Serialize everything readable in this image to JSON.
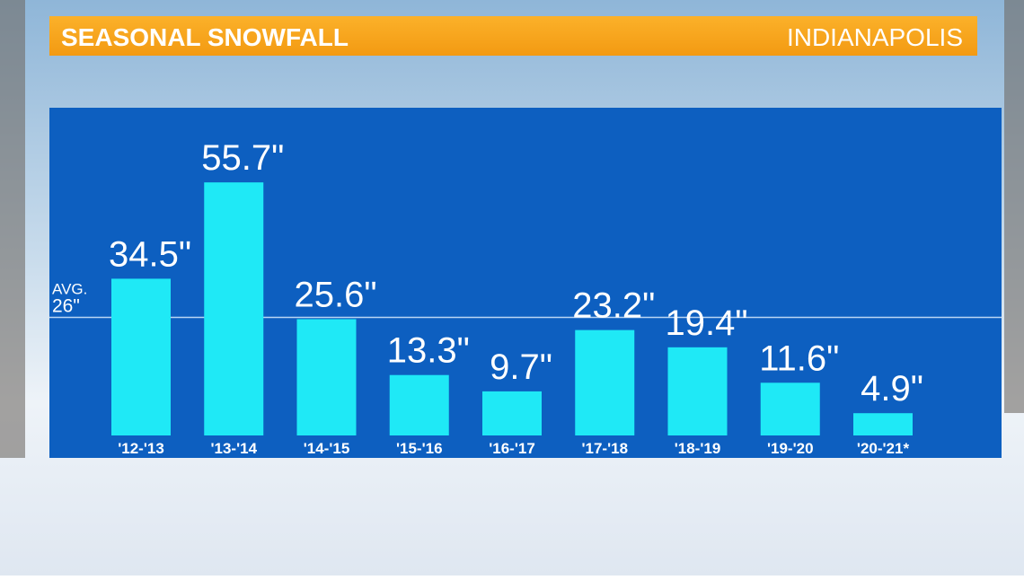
{
  "chart_data": {
    "type": "bar",
    "title": "SEASONAL SNOWFALL",
    "subtitle": "INDIANAPOLIS",
    "categories": [
      "'12-'13",
      "'13-'14",
      "'14-'15",
      "'15-'16",
      "'16-'17",
      "'17-'18",
      "'18-'19",
      "'19-'20",
      "'20-'21*"
    ],
    "values": [
      34.5,
      55.7,
      25.6,
      13.3,
      9.7,
      23.2,
      19.4,
      11.6,
      4.9
    ],
    "value_labels": [
      "34.5\"",
      "55.7\"",
      "25.6\"",
      "13.3\"",
      "9.7\"",
      "23.2\"",
      "19.4\"",
      "11.6\"",
      "4.9\""
    ],
    "color": "#1fe9f6",
    "reference_line": {
      "value": 26,
      "name": "AVG.",
      "label": "26\""
    }
  }
}
